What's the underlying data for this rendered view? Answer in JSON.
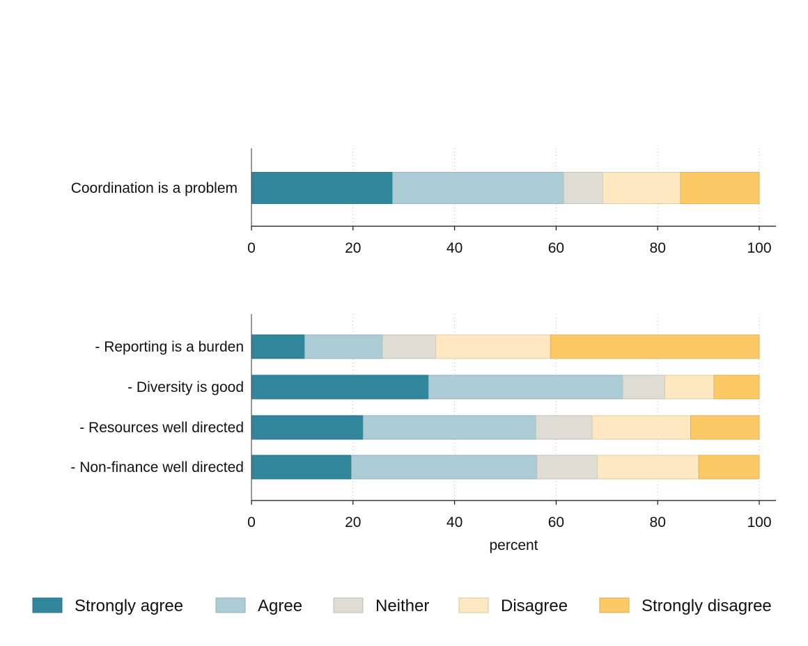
{
  "colors": {
    "Strongly agree": "#31869b",
    "Agree": "#adcdd6",
    "Neither": "#dfddd3",
    "Disagree": "#fde8c1",
    "Strongly disagree": "#fdc966"
  },
  "chart_data": [
    {
      "type": "bar",
      "orientation": "horizontal",
      "stacked": true,
      "categories": [
        "Coordination is a problem"
      ],
      "series": [
        {
          "name": "Strongly agree",
          "values": [
            27.8
          ]
        },
        {
          "name": "Agree",
          "values": [
            33.7
          ]
        },
        {
          "name": "Neither",
          "values": [
            7.7
          ]
        },
        {
          "name": "Disagree",
          "values": [
            15.3
          ]
        },
        {
          "name": "Strongly disagree",
          "values": [
            15.5
          ]
        }
      ],
      "xlim": [
        0,
        100
      ],
      "xticks": [
        "0",
        "20",
        "40",
        "60",
        "80",
        "100"
      ],
      "xlabel": "",
      "grid": "vertical dotted"
    },
    {
      "type": "bar",
      "orientation": "horizontal",
      "stacked": true,
      "categories": [
        "- Reporting is a burden",
        "- Diversity is good",
        "- Resources well directed",
        "- Non-finance well directed"
      ],
      "series": [
        {
          "name": "Strongly agree",
          "values": [
            10.5,
            34.9,
            22.0,
            19.7
          ]
        },
        {
          "name": "Agree",
          "values": [
            15.3,
            38.2,
            34.0,
            36.5
          ]
        },
        {
          "name": "Neither",
          "values": [
            10.5,
            8.3,
            11.1,
            11.9
          ]
        },
        {
          "name": "Disagree",
          "values": [
            22.6,
            9.7,
            19.4,
            20.0
          ]
        },
        {
          "name": "Strongly disagree",
          "values": [
            41.1,
            8.9,
            13.5,
            11.9
          ]
        }
      ],
      "xlim": [
        0,
        100
      ],
      "xticks": [
        "0",
        "20",
        "40",
        "60",
        "80",
        "100"
      ],
      "xlabel": "percent",
      "grid": "vertical dotted"
    }
  ],
  "legend": {
    "placement": "bottom",
    "items": [
      "Strongly agree",
      "Agree",
      "Neither",
      "Disagree",
      "Strongly disagree"
    ]
  }
}
